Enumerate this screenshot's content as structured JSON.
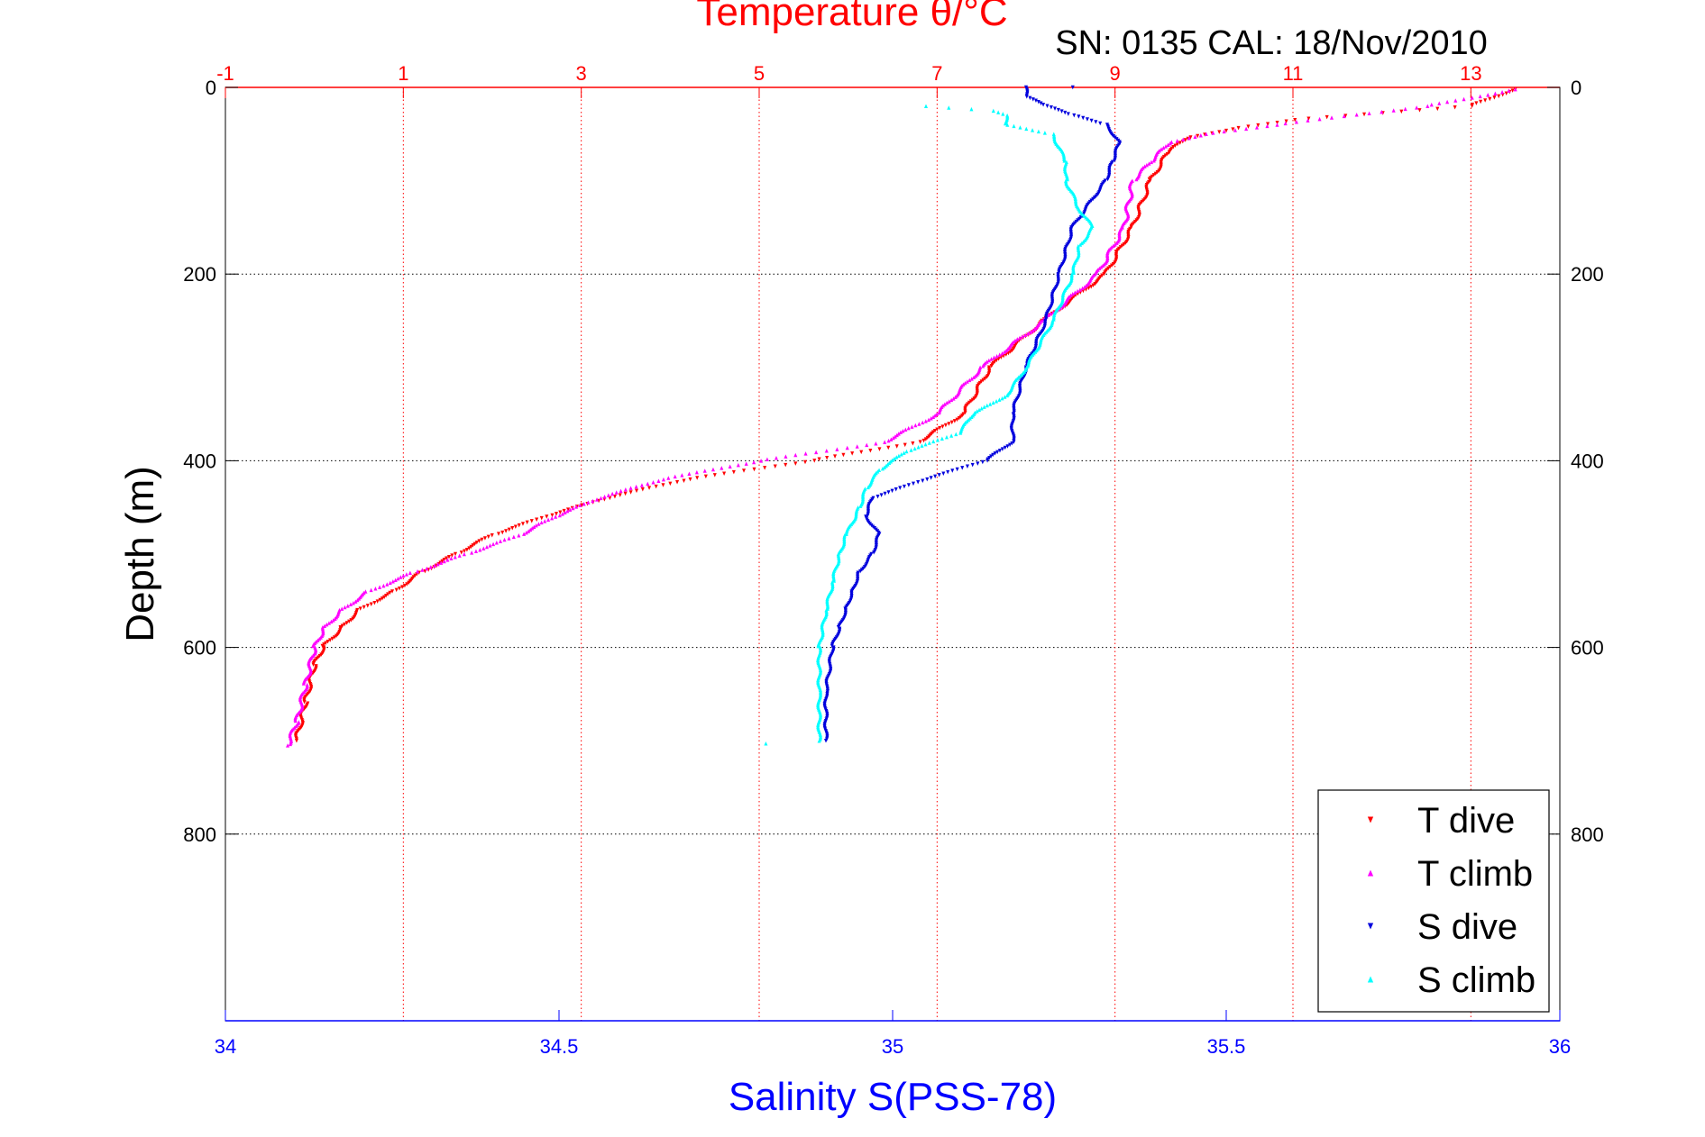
{
  "chart_data": {
    "type": "scatter",
    "title": "Temperature θ/°C",
    "subtitle": "SN: 0135  CAL: 18/Nov/2010",
    "xlabel": "Salinity S(PSS-78)",
    "x2label": "Temperature θ/°C",
    "ylabel": "Depth (m)",
    "ylim": [
      0,
      1000
    ],
    "y_reversed": true,
    "salinity_lim": [
      34,
      36
    ],
    "temperature_lim": [
      -1,
      14
    ],
    "grid": true,
    "legend_position": "bottom-right",
    "y_ticks": [
      0,
      200,
      400,
      600,
      800
    ],
    "y_tick_labels": [
      "0",
      "200",
      "400",
      "600",
      "800"
    ],
    "salinity_ticks": [
      34,
      34.5,
      35,
      35.5,
      36
    ],
    "salinity_tick_labels": [
      "34",
      "34.5",
      "35",
      "35.5",
      "36"
    ],
    "temperature_ticks": [
      -1,
      1,
      3,
      5,
      7,
      9,
      11,
      13
    ],
    "temperature_tick_labels": [
      "-1",
      "1",
      "3",
      "5",
      "7",
      "9",
      "11",
      "13"
    ],
    "series": [
      {
        "name": "T dive",
        "axis": "temperature",
        "color": "#ff0000",
        "marker": "triangle-down",
        "depth": [
          2,
          20,
          35,
          45,
          55,
          70,
          100,
          150,
          200,
          250,
          300,
          350,
          380,
          400,
          420,
          440,
          460,
          480,
          500,
          520,
          540,
          560,
          580,
          600,
          620,
          660,
          700
        ],
        "values": [
          13.5,
          13.0,
          11.0,
          10.3,
          9.8,
          9.6,
          9.4,
          9.2,
          8.9,
          8.2,
          7.6,
          7.3,
          6.8,
          5.6,
          4.2,
          3.3,
          2.6,
          2.0,
          1.6,
          1.2,
          0.9,
          0.5,
          0.3,
          0.1,
          0.0,
          -0.1,
          -0.2
        ]
      },
      {
        "name": "T climb",
        "axis": "temperature",
        "color": "#ff00ff",
        "marker": "triangle-up",
        "depth": [
          2,
          20,
          40,
          50,
          60,
          80,
          100,
          150,
          200,
          250,
          300,
          350,
          380,
          400,
          420,
          440,
          460,
          480,
          500,
          520,
          540,
          560,
          580,
          600,
          640,
          680,
          705
        ],
        "values": [
          13.5,
          12.5,
          10.8,
          10.0,
          9.6,
          9.4,
          9.2,
          9.1,
          8.8,
          8.2,
          7.5,
          7.0,
          6.4,
          5.0,
          3.9,
          3.2,
          2.7,
          2.3,
          1.7,
          1.1,
          0.6,
          0.3,
          0.1,
          0.0,
          -0.1,
          -0.2,
          -0.3
        ]
      },
      {
        "name": "S dive",
        "axis": "salinity",
        "color": "#0000dd",
        "marker": "triangle-down",
        "depth": [
          0,
          10,
          20,
          30,
          40,
          60,
          80,
          100,
          150,
          200,
          250,
          300,
          350,
          380,
          400,
          420,
          440,
          460,
          480,
          500,
          520,
          540,
          560,
          580,
          600,
          650,
          700
        ],
        "values": [
          35.2,
          35.2,
          35.23,
          35.27,
          35.32,
          35.34,
          35.33,
          35.32,
          35.27,
          35.25,
          35.23,
          35.2,
          35.18,
          35.18,
          35.14,
          35.05,
          34.97,
          34.96,
          34.98,
          34.97,
          34.95,
          34.94,
          34.93,
          34.92,
          34.91,
          34.9,
          34.9
        ]
      },
      {
        "name": "S climb",
        "axis": "salinity",
        "color": "#00ffff",
        "marker": "triangle-up",
        "depth": [
          20,
          25,
          30,
          40,
          50,
          80,
          100,
          130,
          150,
          170,
          200,
          250,
          300,
          330,
          350,
          370,
          390,
          410,
          430,
          450,
          480,
          500,
          530,
          560,
          600,
          650,
          700
        ],
        "values": [
          35.05,
          35.15,
          35.17,
          35.17,
          35.24,
          35.26,
          35.26,
          35.28,
          35.3,
          35.28,
          35.27,
          35.24,
          35.2,
          35.17,
          35.12,
          35.1,
          35.02,
          34.98,
          34.96,
          34.95,
          34.93,
          34.92,
          34.91,
          34.9,
          34.89,
          34.89,
          34.89
        ]
      },
      {
        "name": "S climb outlier",
        "axis": "salinity",
        "legend": false,
        "color": "#00ffff",
        "marker": "triangle-up",
        "depth": [
          703
        ],
        "values": [
          34.81
        ]
      },
      {
        "name": "S dive outlier",
        "axis": "salinity",
        "legend": false,
        "color": "#0000dd",
        "marker": "triangle-down",
        "depth": [
          0
        ],
        "values": [
          35.27
        ]
      }
    ],
    "legend": [
      "T dive",
      "T climb",
      "S dive",
      "S climb"
    ]
  }
}
